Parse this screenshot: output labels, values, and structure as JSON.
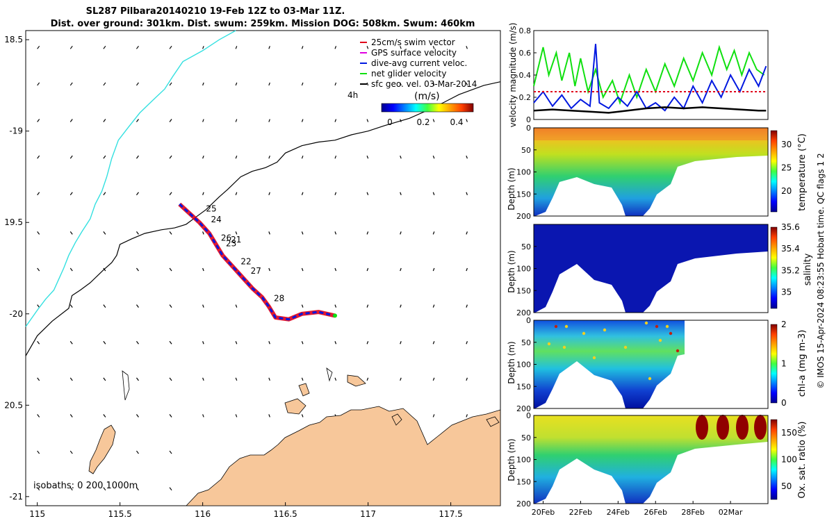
{
  "title_line1": "SL287 Pilbara20140210 19-Feb 12Z to 03-Mar 11Z.",
  "title_line2": "Dist. over ground: 301km. Dist. swum: 259km. Mission DOG: 508km. Swum: 460km",
  "side_note": "© IMOS 15-Apr-2024 08:23:55 Hobart time. QC flags 1  2",
  "colors": {
    "coast_fill": "#f7c79a",
    "isobath_200": "#000000",
    "isobath_1000": "#33e0e0",
    "swim": "#e0001a",
    "gps": "#e000e0",
    "current": "#0018e0",
    "glider": "#10e010",
    "geo": "#000000"
  },
  "chart_data": [
    {
      "type": "map",
      "title": "SL287 Pilbara20140210 track",
      "xlim": [
        114.93,
        117.8
      ],
      "ylim": [
        -21.05,
        -18.45
      ],
      "x_ticks": [
        115,
        115.5,
        116,
        116.5,
        117,
        117.5
      ],
      "x_tick_labels": [
        "115",
        "115.5",
        "116",
        "116.5",
        "117",
        "117.5"
      ],
      "y_ticks": [
        -18.5,
        -19,
        -19.5,
        -20,
        -20.5,
        -21
      ],
      "y_tick_labels": [
        "18.5",
        "-19",
        "19.5",
        "-20",
        "20.5",
        "-21"
      ],
      "legend": [
        {
          "label": "25cm/s swim vector",
          "color": "#e0001a"
        },
        {
          "label": "GPS surface velocity",
          "color": "#e000e0"
        },
        {
          "label": "dive-avg current veloc.",
          "color": "#0018e0"
        },
        {
          "label": "net glider velocity",
          "color": "#10e010"
        },
        {
          "label": "sfc geo. vel. 03-Mar-2014",
          "color": "#000000"
        }
      ],
      "colorbar": {
        "label": "(m/s)",
        "prefix": "4h",
        "ticks": [
          0,
          0.2,
          0.4
        ],
        "tick_labels": [
          "0",
          "0.2",
          "0.4"
        ],
        "range": [
          -0.05,
          0.5
        ]
      },
      "isobath_label": "isobaths: 0   200  1000m",
      "track": [
        [
          115.86,
          -19.4
        ],
        [
          115.92,
          -19.45
        ],
        [
          115.98,
          -19.5
        ],
        [
          116.04,
          -19.56
        ],
        [
          116.08,
          -19.62
        ],
        [
          116.12,
          -19.68
        ],
        [
          116.18,
          -19.74
        ],
        [
          116.24,
          -19.8
        ],
        [
          116.3,
          -19.86
        ],
        [
          116.36,
          -19.91
        ],
        [
          116.4,
          -19.96
        ],
        [
          116.44,
          -20.02
        ],
        [
          116.52,
          -20.03
        ],
        [
          116.6,
          -20.0
        ],
        [
          116.7,
          -19.99
        ],
        [
          116.8,
          -20.01
        ]
      ],
      "day_labels": [
        {
          "text": "25",
          "x": 116.02,
          "y": -19.44
        },
        {
          "text": "24",
          "x": 116.05,
          "y": -19.5
        },
        {
          "text": "26",
          "x": 116.11,
          "y": -19.6
        },
        {
          "text": "21",
          "x": 116.17,
          "y": -19.61
        },
        {
          "text": "23",
          "x": 116.14,
          "y": -19.63
        },
        {
          "text": "22",
          "x": 116.23,
          "y": -19.73
        },
        {
          "text": "27",
          "x": 116.29,
          "y": -19.78
        },
        {
          "text": "28",
          "x": 116.43,
          "y": -19.93
        }
      ],
      "isobath_200": [
        [
          114.93,
          -20.23
        ],
        [
          115.0,
          -20.12
        ],
        [
          115.09,
          -20.04
        ],
        [
          115.19,
          -19.97
        ],
        [
          115.21,
          -19.9
        ],
        [
          115.26,
          -19.87
        ],
        [
          115.32,
          -19.83
        ],
        [
          115.4,
          -19.76
        ],
        [
          115.45,
          -19.72
        ],
        [
          115.48,
          -19.68
        ],
        [
          115.5,
          -19.62
        ],
        [
          115.57,
          -19.59
        ],
        [
          115.65,
          -19.56
        ],
        [
          115.75,
          -19.54
        ],
        [
          115.83,
          -19.53
        ],
        [
          115.9,
          -19.51
        ],
        [
          115.96,
          -19.47
        ],
        [
          116.02,
          -19.43
        ],
        [
          116.1,
          -19.36
        ],
        [
          116.15,
          -19.32
        ],
        [
          116.23,
          -19.25
        ],
        [
          116.3,
          -19.22
        ],
        [
          116.38,
          -19.2
        ],
        [
          116.45,
          -19.17
        ],
        [
          116.5,
          -19.12
        ],
        [
          116.6,
          -19.08
        ],
        [
          116.7,
          -19.06
        ],
        [
          116.8,
          -19.05
        ],
        [
          116.9,
          -19.02
        ],
        [
          117.0,
          -19.0
        ],
        [
          117.1,
          -18.97
        ],
        [
          117.25,
          -18.93
        ],
        [
          117.4,
          -18.87
        ],
        [
          117.55,
          -18.8
        ],
        [
          117.7,
          -18.75
        ],
        [
          117.8,
          -18.73
        ]
      ],
      "isobath_1000": [
        [
          114.93,
          -20.07
        ],
        [
          115.0,
          -19.98
        ],
        [
          115.05,
          -19.92
        ],
        [
          115.1,
          -19.87
        ],
        [
          115.13,
          -19.81
        ],
        [
          115.16,
          -19.75
        ],
        [
          115.19,
          -19.68
        ],
        [
          115.23,
          -19.61
        ],
        [
          115.27,
          -19.55
        ],
        [
          115.32,
          -19.48
        ],
        [
          115.35,
          -19.4
        ],
        [
          115.39,
          -19.33
        ],
        [
          115.42,
          -19.25
        ],
        [
          115.45,
          -19.15
        ],
        [
          115.49,
          -19.05
        ],
        [
          115.55,
          -18.98
        ],
        [
          115.62,
          -18.9
        ],
        [
          115.7,
          -18.83
        ],
        [
          115.77,
          -18.77
        ],
        [
          115.82,
          -18.7
        ],
        [
          115.88,
          -18.62
        ],
        [
          116.0,
          -18.56
        ],
        [
          116.1,
          -18.5
        ],
        [
          116.2,
          -18.45
        ]
      ]
    },
    {
      "type": "line",
      "title": "velocity magnitude",
      "ylabel": "velocity magnitude (m/s)",
      "ylim": [
        0,
        0.8
      ],
      "y_ticks": [
        0,
        0.2,
        0.4,
        0.6,
        0.8
      ],
      "y_tick_labels": [
        "0",
        "0.2",
        "0.4",
        "0.6",
        "0.8"
      ],
      "xlim": [
        19.5,
        32.0
      ],
      "series": [
        {
          "name": "net glider velocity",
          "color": "#10e010",
          "x": [
            19.5,
            20.0,
            20.3,
            20.7,
            21.0,
            21.4,
            21.7,
            22.0,
            22.4,
            22.8,
            23.2,
            23.7,
            24.1,
            24.6,
            25.0,
            25.5,
            26.0,
            26.5,
            27.0,
            27.5,
            28.0,
            28.5,
            29.0,
            29.4,
            29.8,
            30.2,
            30.6,
            31.0,
            31.4,
            31.8
          ],
          "values": [
            0.3,
            0.65,
            0.4,
            0.6,
            0.35,
            0.6,
            0.3,
            0.55,
            0.25,
            0.45,
            0.2,
            0.35,
            0.15,
            0.4,
            0.2,
            0.45,
            0.25,
            0.5,
            0.3,
            0.55,
            0.35,
            0.6,
            0.4,
            0.65,
            0.45,
            0.62,
            0.4,
            0.6,
            0.45,
            0.4
          ]
        },
        {
          "name": "dive-avg current veloc.",
          "color": "#0018e0",
          "x": [
            19.5,
            20.0,
            20.5,
            21.0,
            21.5,
            22.0,
            22.5,
            22.8,
            23.0,
            23.5,
            24.0,
            24.5,
            25.0,
            25.5,
            26.0,
            26.5,
            27.0,
            27.5,
            28.0,
            28.5,
            29.0,
            29.5,
            30.0,
            30.5,
            31.0,
            31.5,
            31.9
          ],
          "values": [
            0.15,
            0.25,
            0.12,
            0.22,
            0.1,
            0.18,
            0.12,
            0.68,
            0.15,
            0.1,
            0.2,
            0.12,
            0.25,
            0.1,
            0.15,
            0.08,
            0.2,
            0.1,
            0.3,
            0.15,
            0.35,
            0.2,
            0.4,
            0.25,
            0.45,
            0.3,
            0.48
          ]
        },
        {
          "name": "sfc geo. vel.",
          "color": "#000000",
          "x": [
            19.5,
            20.5,
            21.5,
            22.5,
            23.5,
            24.5,
            25.5,
            26.5,
            27.5,
            28.5,
            29.5,
            30.5,
            31.5,
            31.9
          ],
          "values": [
            0.08,
            0.09,
            0.08,
            0.07,
            0.06,
            0.08,
            0.1,
            0.11,
            0.1,
            0.11,
            0.1,
            0.09,
            0.08,
            0.08
          ]
        },
        {
          "name": "swim",
          "color": "#e0001a",
          "x": [
            19.5,
            31.9
          ],
          "values": [
            0.25,
            0.25
          ]
        }
      ]
    },
    {
      "type": "heatmap",
      "variable": "temperature",
      "ylabel": "Depth (m)",
      "clabel": "temperature (°C)",
      "ylim": [
        200,
        0
      ],
      "y_ticks": [
        0,
        50,
        100,
        150,
        200
      ],
      "y_tick_labels": [
        "0",
        "50",
        "100",
        "150",
        "200"
      ],
      "clim": [
        15.5,
        33
      ],
      "c_ticks": [
        20,
        25,
        30
      ],
      "c_tick_labels": [
        "20",
        "25",
        "30"
      ],
      "colormap": "jet"
    },
    {
      "type": "heatmap",
      "variable": "salinity",
      "ylabel": "Depth (m)",
      "clabel": "salinity",
      "ylim": [
        200,
        0
      ],
      "y_ticks": [
        50,
        100,
        150,
        200
      ],
      "y_tick_labels": [
        "50",
        "100",
        "150",
        "200"
      ],
      "clim": [
        34.85,
        35.6
      ],
      "c_ticks": [
        35,
        35.2,
        35.4,
        35.6
      ],
      "c_tick_labels": [
        "35",
        "35.2",
        "35.4",
        "35.6"
      ],
      "colormap": "jet"
    },
    {
      "type": "heatmap",
      "variable": "chl-a",
      "ylabel": "Depth (m)",
      "clabel": "chl-a (mg m-3)",
      "ylim": [
        200,
        0
      ],
      "y_ticks": [
        0,
        50,
        100,
        150,
        200
      ],
      "y_tick_labels": [
        "0",
        "50",
        "100",
        "150",
        "200"
      ],
      "clim": [
        0,
        2
      ],
      "c_ticks": [
        0,
        1,
        2
      ],
      "c_tick_labels": [
        "0",
        "1",
        "2"
      ],
      "colormap": "jet"
    },
    {
      "type": "heatmap",
      "variable": "oxygen saturation",
      "ylabel": "Depth (m)",
      "clabel": "Ox. sat. ratio (%)",
      "ylim": [
        200,
        0
      ],
      "y_ticks": [
        0,
        50,
        100,
        150,
        200
      ],
      "y_tick_labels": [
        "0",
        "50",
        "100",
        "150",
        "200"
      ],
      "clim": [
        25,
        175
      ],
      "c_ticks": [
        50,
        100,
        150
      ],
      "c_tick_labels": [
        "50",
        "100",
        "150"
      ],
      "colormap": "jet",
      "x_ticks": [
        20,
        22,
        24,
        26,
        28,
        30
      ],
      "x_tick_labels": [
        "20Feb",
        "22Feb",
        "24Feb",
        "26Feb",
        "28Feb",
        "02Mar"
      ]
    }
  ]
}
